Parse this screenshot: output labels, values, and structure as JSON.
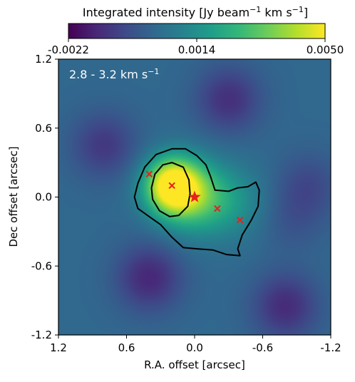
{
  "colorbar": {
    "label": "Integrated intensity [Jy beam",
    "label_sup1": "−1",
    "label_mid": " km s",
    "label_sup2": "−1",
    "label_end": "]",
    "ticks": [
      "-0.0022",
      "0.0014",
      "0.0050"
    ],
    "range": [
      -0.0022,
      0.005
    ],
    "colormap": "viridis"
  },
  "panel": {
    "annotation": "2.8 - 3.2 km s",
    "annotation_sup": "−1"
  },
  "chart_data": {
    "type": "heatmap",
    "title": "",
    "xlabel": "R.A. offset [arcsec]",
    "ylabel": "Dec offset [arcsec]",
    "xlim": [
      1.2,
      -1.2
    ],
    "ylim": [
      -1.2,
      1.2
    ],
    "xticks": [
      {
        "value": 1.2,
        "label": "1.2"
      },
      {
        "value": 0.6,
        "label": "0.6"
      },
      {
        "value": 0.0,
        "label": "0.0"
      },
      {
        "value": -0.6,
        "label": "-0.6"
      },
      {
        "value": -1.2,
        "label": "-1.2"
      }
    ],
    "yticks": [
      {
        "value": 1.2,
        "label": "1.2"
      },
      {
        "value": 0.6,
        "label": "0.6"
      },
      {
        "value": 0.0,
        "label": "0.0"
      },
      {
        "value": -0.6,
        "label": "-0.6"
      },
      {
        "value": -1.2,
        "label": "-1.2"
      }
    ],
    "grid": false,
    "emission_components": [
      {
        "ra": 0.2,
        "dec": 0.1,
        "peak": 0.005
      },
      {
        "ra": 0.0,
        "dec": 0.0,
        "peak": 0.0025
      },
      {
        "ra": -0.35,
        "dec": -0.05,
        "peak": 0.001
      },
      {
        "ra": 0.8,
        "dec": 0.45,
        "peak": -0.0012
      },
      {
        "ra": -0.3,
        "dec": 0.85,
        "peak": -0.0014
      },
      {
        "ra": 0.4,
        "dec": -0.7,
        "peak": -0.0016
      },
      {
        "ra": -0.8,
        "dec": -0.95,
        "peak": -0.0015
      },
      {
        "ra": -1.0,
        "dec": 0.1,
        "peak": -0.0008
      },
      {
        "ra": -0.85,
        "dec": -0.2,
        "peak": -0.0005
      }
    ],
    "background_level": 0.0002,
    "contours": [
      {
        "level": "outer",
        "color": "#000000",
        "points": [
          [
            0.2,
            0.42
          ],
          [
            0.08,
            0.42
          ],
          [
            -0.02,
            0.36
          ],
          [
            -0.1,
            0.28
          ],
          [
            -0.14,
            0.18
          ],
          [
            -0.18,
            0.06
          ],
          [
            -0.3,
            0.05
          ],
          [
            -0.38,
            0.08
          ],
          [
            -0.47,
            0.09
          ],
          [
            -0.54,
            0.13
          ],
          [
            -0.57,
            0.06
          ],
          [
            -0.56,
            -0.08
          ],
          [
            -0.5,
            -0.2
          ],
          [
            -0.42,
            -0.33
          ],
          [
            -0.38,
            -0.45
          ],
          [
            -0.4,
            -0.51
          ],
          [
            -0.28,
            -0.5
          ],
          [
            -0.16,
            -0.46
          ],
          [
            -0.02,
            -0.45
          ],
          [
            0.1,
            -0.44
          ],
          [
            0.2,
            -0.35
          ],
          [
            0.3,
            -0.24
          ],
          [
            0.4,
            -0.17
          ],
          [
            0.5,
            -0.1
          ],
          [
            0.53,
            0.0
          ],
          [
            0.5,
            0.12
          ],
          [
            0.44,
            0.26
          ],
          [
            0.34,
            0.37
          ]
        ]
      },
      {
        "level": "inner",
        "color": "#000000",
        "points": [
          [
            0.2,
            0.3
          ],
          [
            0.1,
            0.26
          ],
          [
            0.05,
            0.15
          ],
          [
            0.04,
            0.03
          ],
          [
            0.06,
            -0.08
          ],
          [
            0.14,
            -0.16
          ],
          [
            0.22,
            -0.17
          ],
          [
            0.31,
            -0.12
          ],
          [
            0.37,
            -0.02
          ],
          [
            0.38,
            0.08
          ],
          [
            0.35,
            0.2
          ],
          [
            0.28,
            0.28
          ]
        ]
      }
    ],
    "markers": [
      {
        "ra": 0.4,
        "dec": 0.2,
        "symbol": "x",
        "color": "#e8221b"
      },
      {
        "ra": 0.2,
        "dec": 0.1,
        "symbol": "x",
        "color": "#e8221b"
      },
      {
        "ra": -0.2,
        "dec": -0.1,
        "symbol": "x",
        "color": "#e8221b"
      },
      {
        "ra": -0.4,
        "dec": -0.2,
        "symbol": "x",
        "color": "#e8221b"
      },
      {
        "ra": 0.0,
        "dec": 0.0,
        "symbol": "star",
        "color": "#e8221b"
      }
    ]
  }
}
